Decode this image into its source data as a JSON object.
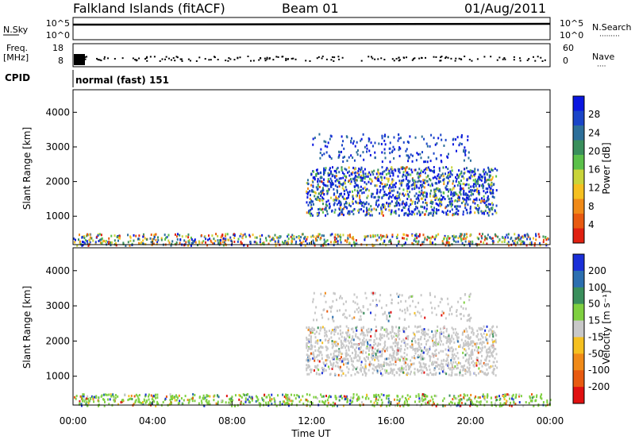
{
  "header": {
    "station": "Falkland Islands (fitACF)",
    "beam": "Beam 01",
    "date": "01/Aug/2011"
  },
  "left_labels": {
    "nsky": "N.Sky",
    "freq_line1": "Freq.",
    "freq_line2": "[MHz]",
    "cpid": "CPID"
  },
  "right_labels": {
    "nsearch": "N.Search",
    "nsearch_dots": "·········",
    "nave": "Nave",
    "nave_dots": "····"
  },
  "noise_panel": {
    "left_ticks": [
      "10^5",
      "10^0"
    ],
    "right_ticks": [
      "10^5",
      "10^0"
    ]
  },
  "freq_panel": {
    "left_ticks": [
      "18",
      "8"
    ],
    "right_ticks": [
      "60",
      "0"
    ]
  },
  "cpid_text": "normal (fast) 151",
  "chart_data": [
    {
      "type": "heatmap",
      "name": "power",
      "ylabel": "Slant Range [km]",
      "yticks": [
        "4000",
        "3000",
        "2000",
        "1000"
      ],
      "ylim": [
        180,
        4650
      ],
      "xlim": [
        0,
        24
      ],
      "colorbar": {
        "label": "Power [dB]",
        "ticks": [
          "28",
          "24",
          "20",
          "16",
          "12",
          "8",
          "4"
        ],
        "colors": [
          "#0a16e0",
          "#1a45c8",
          "#2d6f9a",
          "#3a8f5c",
          "#5bc04a",
          "#c9d43a",
          "#f5c020",
          "#f08a18",
          "#e85a10",
          "#e02010"
        ]
      },
      "regions": [
        {
          "t0": 11.7,
          "t1": 21.3,
          "r0": 1050,
          "r1": 2450,
          "level": "mid"
        },
        {
          "t0": 12.0,
          "t1": 20.0,
          "r0": 2600,
          "r1": 3400,
          "level": "low"
        },
        {
          "t0": 0.0,
          "t1": 24.0,
          "r0": 180,
          "r1": 520,
          "level": "ground"
        }
      ]
    },
    {
      "type": "heatmap",
      "name": "velocity",
      "ylabel": "Slant Range [km]",
      "yticks": [
        "4000",
        "3000",
        "2000",
        "1000"
      ],
      "ylim": [
        180,
        4650
      ],
      "xlim": [
        0,
        24
      ],
      "xlabel": "Time UT",
      "xticks": [
        "00:00",
        "04:00",
        "08:00",
        "12:00",
        "16:00",
        "20:00",
        "00:00"
      ],
      "colorbar": {
        "label": "Velocity [m s⁻¹]",
        "ticks": [
          "200",
          "100",
          "50",
          "15",
          "-15",
          "-50",
          "-100",
          "-200"
        ],
        "colors": [
          "#1a2fd8",
          "#2c6fb0",
          "#3a8f5c",
          "#7fd040",
          "#c8c8c8",
          "#f5c020",
          "#f08a18",
          "#e85a10",
          "#e01010"
        ]
      },
      "regions": [
        {
          "t0": 11.7,
          "t1": 21.3,
          "r0": 1050,
          "r1": 2450,
          "level": "mid"
        },
        {
          "t0": 12.0,
          "t1": 20.0,
          "r0": 2600,
          "r1": 3400,
          "level": "low"
        },
        {
          "t0": 0.0,
          "t1": 24.0,
          "r0": 180,
          "r1": 520,
          "level": "ground"
        }
      ]
    }
  ]
}
